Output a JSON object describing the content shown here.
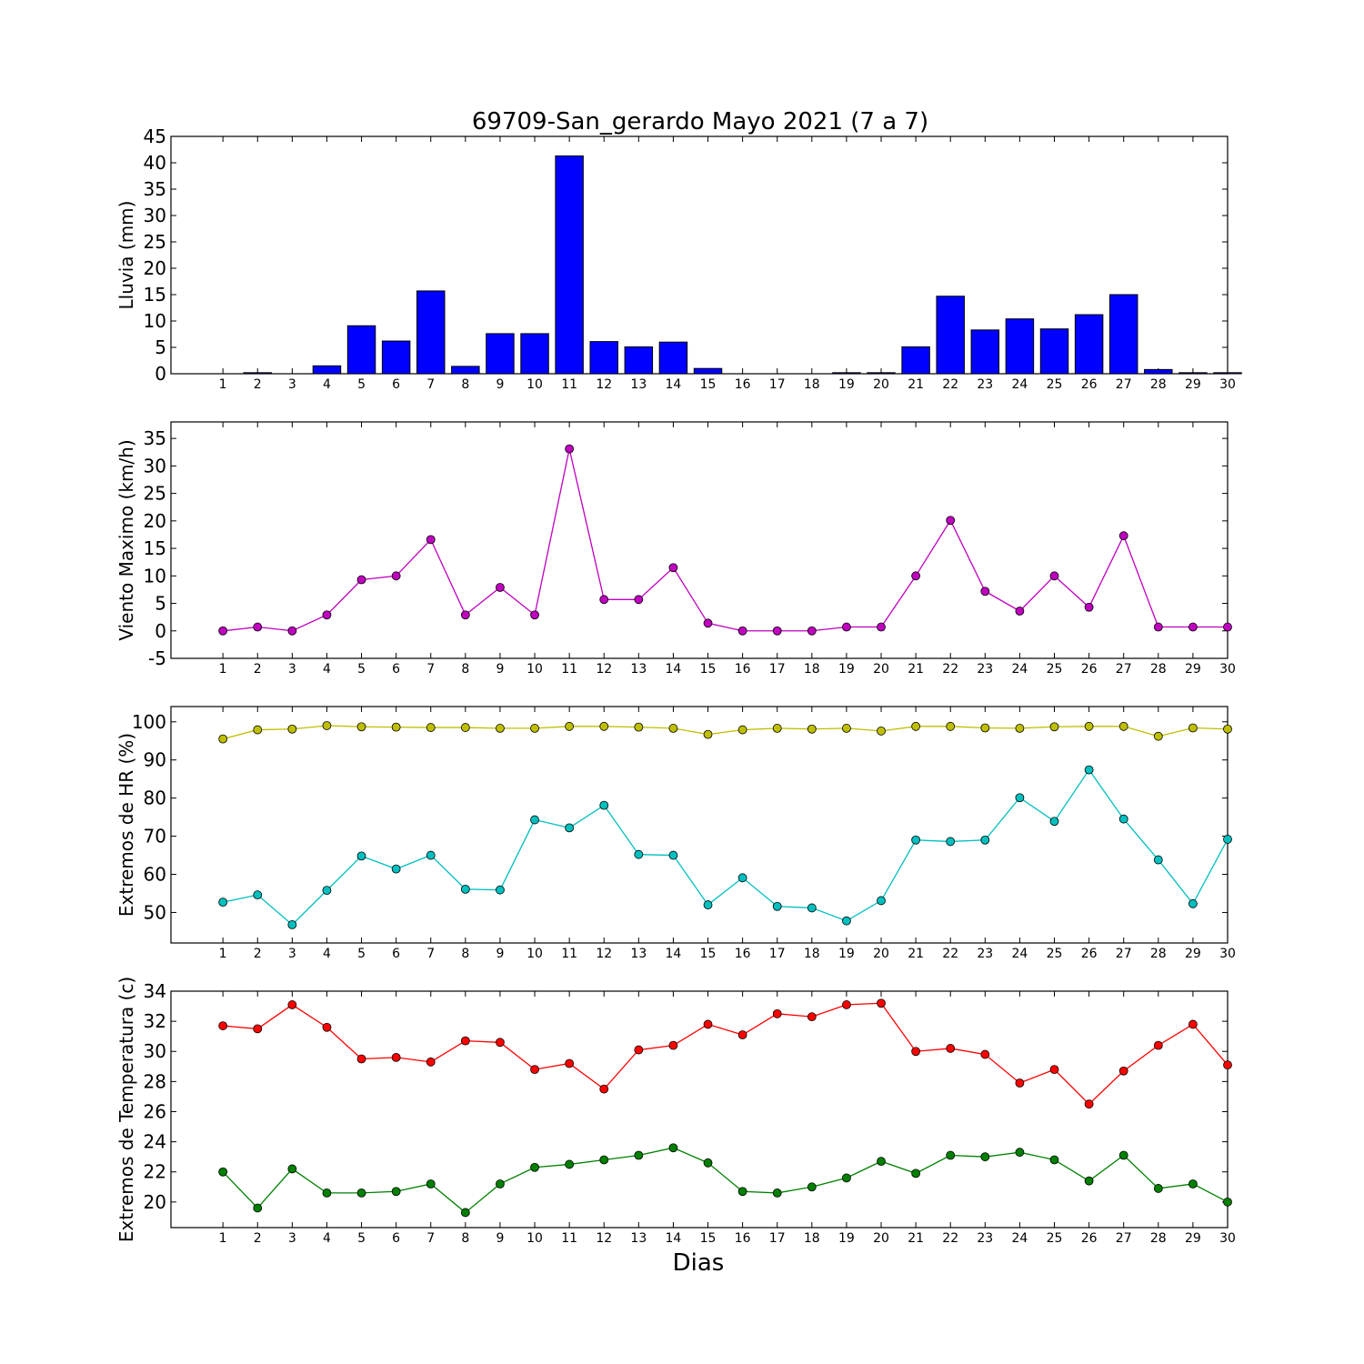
{
  "figure": {
    "title": "69709-San_gerardo Mayo 2021  (7 a 7)",
    "xlabel": "Dias"
  },
  "chart_data": [
    {
      "type": "bar",
      "ylabel": "Lluvia (mm)",
      "ylim": [
        0,
        45
      ],
      "yticks": [
        0,
        5,
        10,
        15,
        20,
        25,
        30,
        35,
        40,
        45
      ],
      "categories": [
        "1",
        "2",
        "3",
        "4",
        "5",
        "6",
        "7",
        "8",
        "9",
        "10",
        "11",
        "12",
        "13",
        "14",
        "15",
        "16",
        "17",
        "18",
        "19",
        "20",
        "21",
        "22",
        "23",
        "24",
        "25",
        "26",
        "27",
        "28",
        "29",
        "30"
      ],
      "series": [
        {
          "color": "#0000ff",
          "values": [
            0,
            0.2,
            0,
            1.5,
            9.1,
            6.2,
            15.7,
            1.4,
            7.6,
            7.6,
            41.3,
            6.1,
            5.1,
            6.0,
            1.0,
            0,
            0,
            0,
            0.2,
            0.2,
            5.1,
            14.7,
            8.3,
            10.4,
            8.5,
            11.2,
            15.0,
            0.8,
            0.2,
            0.2
          ]
        }
      ],
      "grid": false
    },
    {
      "type": "line",
      "ylabel": "Viento Maximo (km/h)",
      "ylim": [
        -5,
        38
      ],
      "yticks": [
        -5,
        0,
        5,
        10,
        15,
        20,
        25,
        30,
        35
      ],
      "categories": [
        "1",
        "2",
        "3",
        "4",
        "5",
        "6",
        "7",
        "8",
        "9",
        "10",
        "11",
        "12",
        "13",
        "14",
        "15",
        "16",
        "17",
        "18",
        "19",
        "20",
        "21",
        "22",
        "23",
        "24",
        "25",
        "26",
        "27",
        "28",
        "29",
        "30"
      ],
      "series": [
        {
          "color": "#bf00bf",
          "values": [
            0,
            0.7,
            0,
            2.9,
            9.3,
            10.0,
            16.6,
            2.9,
            7.9,
            2.9,
            33.1,
            5.7,
            5.7,
            11.5,
            1.4,
            0,
            0,
            0,
            0.7,
            0.7,
            10.0,
            20.1,
            7.2,
            3.6,
            10.0,
            4.3,
            17.3,
            0.7,
            0.7,
            0.7
          ]
        }
      ],
      "grid": false
    },
    {
      "type": "line",
      "ylabel": "Extremos de HR (%)",
      "ylim": [
        42,
        104
      ],
      "yticks": [
        50,
        60,
        70,
        80,
        90,
        100
      ],
      "categories": [
        "1",
        "2",
        "3",
        "4",
        "5",
        "6",
        "7",
        "8",
        "9",
        "10",
        "11",
        "12",
        "13",
        "14",
        "15",
        "16",
        "17",
        "18",
        "19",
        "20",
        "21",
        "22",
        "23",
        "24",
        "25",
        "26",
        "27",
        "28",
        "29",
        "30"
      ],
      "series": [
        {
          "color": "#bfbf00",
          "values": [
            95.5,
            97.9,
            98.1,
            99.0,
            98.7,
            98.6,
            98.5,
            98.5,
            98.3,
            98.3,
            98.8,
            98.8,
            98.6,
            98.3,
            96.7,
            97.9,
            98.3,
            98.1,
            98.3,
            97.6,
            98.8,
            98.8,
            98.4,
            98.3,
            98.7,
            98.8,
            98.8,
            96.2,
            98.4,
            98.1
          ]
        },
        {
          "color": "#00bfbf",
          "values": [
            52.7,
            54.6,
            46.8,
            55.8,
            64.8,
            61.4,
            65.0,
            56.1,
            55.9,
            74.3,
            72.2,
            78.1,
            65.2,
            65.0,
            52.0,
            59.1,
            51.6,
            51.2,
            47.8,
            53.1,
            69.0,
            68.6,
            69.0,
            80.1,
            73.9,
            87.4,
            74.5,
            63.8,
            52.3,
            69.2
          ]
        }
      ],
      "grid": false
    },
    {
      "type": "line",
      "ylabel": "Extremos de Temperatura (c)",
      "ylim": [
        18.3,
        34.0
      ],
      "yticks": [
        20,
        22,
        24,
        26,
        28,
        30,
        32,
        34
      ],
      "categories": [
        "1",
        "2",
        "3",
        "4",
        "5",
        "6",
        "7",
        "8",
        "9",
        "10",
        "11",
        "12",
        "13",
        "14",
        "15",
        "16",
        "17",
        "18",
        "19",
        "20",
        "21",
        "22",
        "23",
        "24",
        "25",
        "26",
        "27",
        "28",
        "29",
        "30"
      ],
      "series": [
        {
          "color": "#ff0000",
          "values": [
            31.7,
            31.5,
            33.1,
            31.6,
            29.5,
            29.6,
            29.3,
            30.7,
            30.6,
            28.8,
            29.2,
            27.5,
            30.1,
            30.4,
            31.8,
            31.1,
            32.5,
            32.3,
            33.1,
            33.2,
            30.0,
            30.2,
            29.8,
            27.9,
            28.8,
            26.5,
            28.7,
            30.4,
            31.8,
            29.1
          ]
        },
        {
          "color": "#008000",
          "values": [
            22.0,
            19.6,
            22.2,
            20.6,
            20.6,
            20.7,
            21.2,
            19.3,
            21.2,
            22.3,
            22.5,
            22.8,
            23.1,
            23.6,
            22.6,
            20.7,
            20.6,
            21.0,
            21.6,
            22.7,
            21.9,
            23.1,
            23.0,
            23.3,
            22.8,
            21.4,
            23.1,
            20.9,
            21.2,
            20.0
          ]
        }
      ],
      "grid": false
    }
  ]
}
